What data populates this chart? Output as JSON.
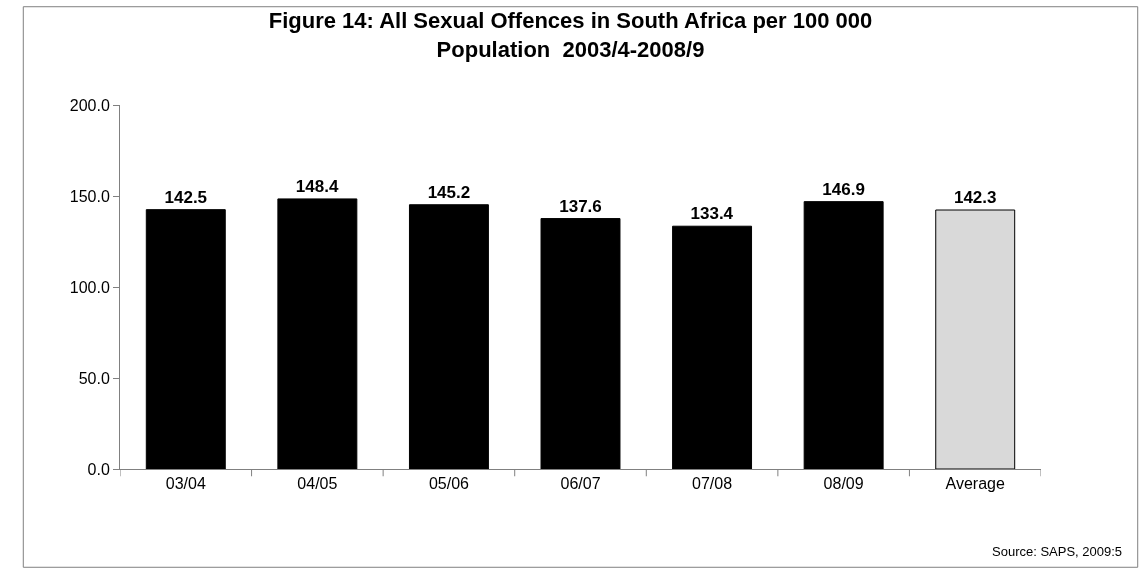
{
  "chart_data": {
    "type": "bar",
    "title": "Figure 14: All Sexual Offences in South Africa per 100 000\nPopulation  2003/4-2008/9",
    "categories": [
      "03/04",
      "04/05",
      "05/06",
      "06/07",
      "07/08",
      "08/09",
      "Average"
    ],
    "values": [
      142.5,
      148.4,
      145.2,
      137.6,
      133.4,
      146.9,
      142.3
    ],
    "colors": [
      "#000000",
      "#000000",
      "#000000",
      "#000000",
      "#000000",
      "#000000",
      "#d9d9d9"
    ],
    "ylim": [
      0,
      200
    ],
    "yticks": [
      {
        "value": 0,
        "label": "0.0"
      },
      {
        "value": 50,
        "label": "50.0"
      },
      {
        "value": 100,
        "label": "100.0"
      },
      {
        "value": 150,
        "label": "150.0"
      },
      {
        "value": 200,
        "label": "200.0"
      }
    ],
    "data_labels": true,
    "grid": false,
    "annotations": [
      "Source: SAPS, 2009:5"
    ]
  }
}
